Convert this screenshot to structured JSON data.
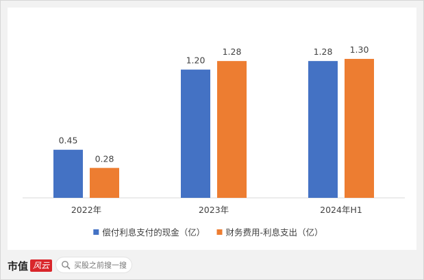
{
  "chart_data": {
    "type": "bar",
    "categories": [
      "2022年",
      "2023年",
      "2024年H1"
    ],
    "series": [
      {
        "name": "偿付利息支付的现金（亿）",
        "color": "#4472c4",
        "values": [
          0.45,
          1.2,
          1.28
        ]
      },
      {
        "name": "财务费用-利息支出（亿）",
        "color": "#ed7d31",
        "values": [
          0.28,
          1.28,
          1.3
        ]
      }
    ],
    "data_labels": [
      [
        "0.45",
        "1.20",
        "1.28"
      ],
      [
        "0.28",
        "1.28",
        "1.30"
      ]
    ],
    "ylim": [
      0,
      1.55
    ],
    "grid": false,
    "legend_position": "bottom"
  },
  "footer": {
    "brand": "市值",
    "brand_logo_text": "风云",
    "search_placeholder": "买股之前搜一搜"
  }
}
